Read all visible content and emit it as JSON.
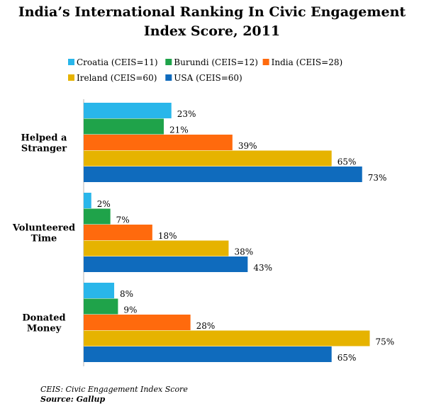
{
  "header": {
    "title_line1": "India’s International Ranking In Civic Engagement",
    "title_line2": "Index Score, 2011"
  },
  "chart_data": {
    "type": "bar",
    "orientation": "horizontal",
    "title": "India’s International Ranking In Civic Engagement Index Score, 2011",
    "categories": [
      "Helped a Stranger",
      "Volunteered Time",
      "Donated Money"
    ],
    "category_label_lines": [
      [
        "Helped a",
        "Stranger"
      ],
      [
        "Volunteered",
        "Time"
      ],
      [
        "Donated",
        "Money"
      ]
    ],
    "series": [
      {
        "name": "Croatia (CEIS=11)",
        "color": "#29b6ea",
        "values": [
          23,
          2,
          8
        ]
      },
      {
        "name": "Burundi (CEIS=12)",
        "color": "#1fa34a",
        "values": [
          21,
          7,
          9
        ]
      },
      {
        "name": "India (CEIS=28)",
        "color": "#ff6a0d",
        "values": [
          39,
          18,
          28
        ]
      },
      {
        "name": "Ireland (CEIS=60)",
        "color": "#e6b300",
        "values": [
          65,
          38,
          75
        ]
      },
      {
        "name": "USA (CEIS=60)",
        "color": "#0f6bbd",
        "values": [
          73,
          43,
          65
        ]
      }
    ],
    "value_suffix": "%",
    "xlim": [
      0,
      80
    ],
    "legend_position": "top",
    "grid": false
  },
  "footer": {
    "note": "CEIS: Civic Engagement Index Score",
    "source": "Source: Gallup"
  }
}
